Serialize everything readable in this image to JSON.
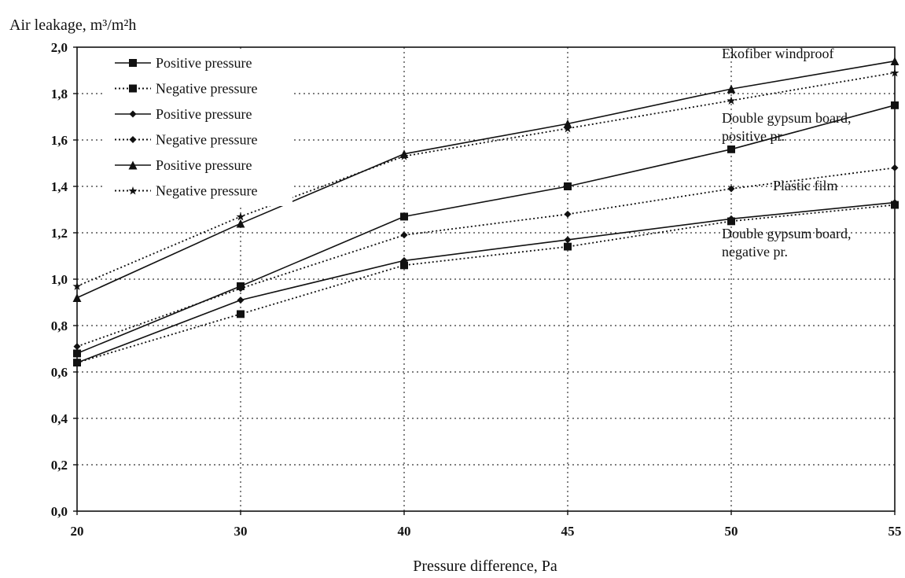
{
  "chart_data": {
    "type": "line",
    "title": "",
    "ylabel": "Air leakage, m³/m²h",
    "xlabel": "Pressure difference, Pa",
    "categories": [
      "20",
      "30",
      "40",
      "45",
      "50",
      "55"
    ],
    "ylim": [
      0,
      2.0
    ],
    "yticks": [
      "0,0",
      "0,2",
      "0,4",
      "0,6",
      "0,8",
      "1,0",
      "1,2",
      "1,4",
      "1,6",
      "1,8",
      "2,0"
    ],
    "grid": true,
    "legend_position": "top-left",
    "series": [
      {
        "name": "Positive pressure",
        "marker": "square",
        "style": "solid",
        "values": [
          0.68,
          0.97,
          1.27,
          1.4,
          1.56,
          1.75
        ]
      },
      {
        "name": "Negative pressure",
        "marker": "square",
        "style": "dotted",
        "values": [
          0.64,
          0.85,
          1.06,
          1.14,
          1.25,
          1.32
        ]
      },
      {
        "name": "Positive pressure",
        "marker": "diamond",
        "style": "solid",
        "values": [
          0.64,
          0.91,
          1.08,
          1.17,
          1.26,
          1.33
        ]
      },
      {
        "name": "Negative pressure",
        "marker": "diamond",
        "style": "dotted",
        "values": [
          0.71,
          0.96,
          1.19,
          1.28,
          1.39,
          1.48
        ]
      },
      {
        "name": "Positive pressure",
        "marker": "triangle",
        "style": "solid",
        "values": [
          0.92,
          1.24,
          1.54,
          1.67,
          1.82,
          1.94
        ]
      },
      {
        "name": "Negative pressure",
        "marker": "star",
        "style": "dotted",
        "values": [
          0.97,
          1.27,
          1.53,
          1.65,
          1.77,
          1.89
        ]
      }
    ],
    "annotations": [
      {
        "lines": [
          "Ekofiber windproof"
        ]
      },
      {
        "lines": [
          "Double gypsum board,",
          "positive pr."
        ]
      },
      {
        "lines": [
          "Plastic film"
        ]
      },
      {
        "lines": [
          "Double gypsum board,",
          "negative pr."
        ]
      }
    ]
  }
}
